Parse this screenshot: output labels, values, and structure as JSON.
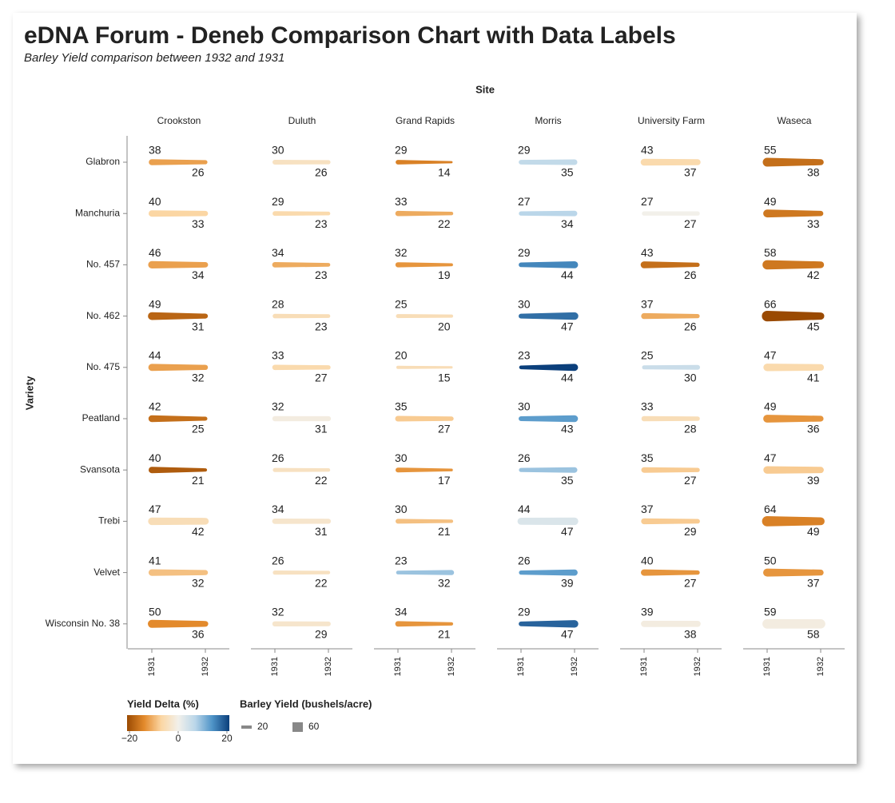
{
  "chart_data": {
    "type": "trail",
    "title": "eDNA Forum - Deneb Comparison Chart with Data Labels",
    "subtitle": "Barley Yield comparison between 1932 and 1931",
    "column_title": "Site",
    "row_title": "Variety",
    "columns": [
      "Crookston",
      "Duluth",
      "Grand Rapids",
      "Morris",
      "University Farm",
      "Waseca"
    ],
    "rows": [
      "Glabron",
      "Manchuria",
      "No. 457",
      "No. 462",
      "No. 475",
      "Peatland",
      "Svansota",
      "Trebi",
      "Velvet",
      "Wisconsin No. 38"
    ],
    "x": [
      "1931",
      "1932"
    ],
    "values": [
      [
        [
          38,
          26
        ],
        [
          30,
          26
        ],
        [
          29,
          14
        ],
        [
          29,
          35
        ],
        [
          43,
          37
        ],
        [
          55,
          38
        ]
      ],
      [
        [
          40,
          33
        ],
        [
          29,
          23
        ],
        [
          33,
          22
        ],
        [
          27,
          34
        ],
        [
          27,
          27
        ],
        [
          49,
          33
        ]
      ],
      [
        [
          46,
          34
        ],
        [
          34,
          23
        ],
        [
          32,
          19
        ],
        [
          29,
          44
        ],
        [
          43,
          26
        ],
        [
          58,
          42
        ]
      ],
      [
        [
          49,
          31
        ],
        [
          28,
          23
        ],
        [
          25,
          20
        ],
        [
          30,
          47
        ],
        [
          37,
          26
        ],
        [
          66,
          45
        ]
      ],
      [
        [
          44,
          32
        ],
        [
          33,
          27
        ],
        [
          20,
          15
        ],
        [
          23,
          44
        ],
        [
          25,
          30
        ],
        [
          47,
          41
        ]
      ],
      [
        [
          42,
          25
        ],
        [
          32,
          31
        ],
        [
          35,
          27
        ],
        [
          30,
          43
        ],
        [
          33,
          28
        ],
        [
          49,
          36
        ]
      ],
      [
        [
          40,
          21
        ],
        [
          26,
          22
        ],
        [
          30,
          17
        ],
        [
          26,
          35
        ],
        [
          35,
          27
        ],
        [
          47,
          39
        ]
      ],
      [
        [
          47,
          42
        ],
        [
          34,
          31
        ],
        [
          30,
          21
        ],
        [
          44,
          47
        ],
        [
          37,
          29
        ],
        [
          64,
          49
        ]
      ],
      [
        [
          41,
          32
        ],
        [
          26,
          22
        ],
        [
          23,
          32
        ],
        [
          26,
          39
        ],
        [
          40,
          27
        ],
        [
          50,
          37
        ]
      ],
      [
        [
          50,
          36
        ],
        [
          32,
          29
        ],
        [
          34,
          21
        ],
        [
          29,
          47
        ],
        [
          39,
          38
        ],
        [
          59,
          58
        ]
      ]
    ],
    "color_legend": {
      "title": "Yield Delta (%)",
      "lim": [
        -21,
        21
      ],
      "ticks": [
        {
          "value": -20,
          "label": "−20"
        },
        0,
        20
      ],
      "scheme": [
        "#9a4a02",
        "#e38a2c",
        "#fbd6a3",
        "#f2f0ea",
        "#bad6e9",
        "#4e93c7",
        "#0b3f7b"
      ]
    },
    "size_legend": {
      "title": "Barley Yield (bushels/acre)",
      "ticks": [
        20,
        60
      ]
    },
    "label_color": "#222222"
  }
}
